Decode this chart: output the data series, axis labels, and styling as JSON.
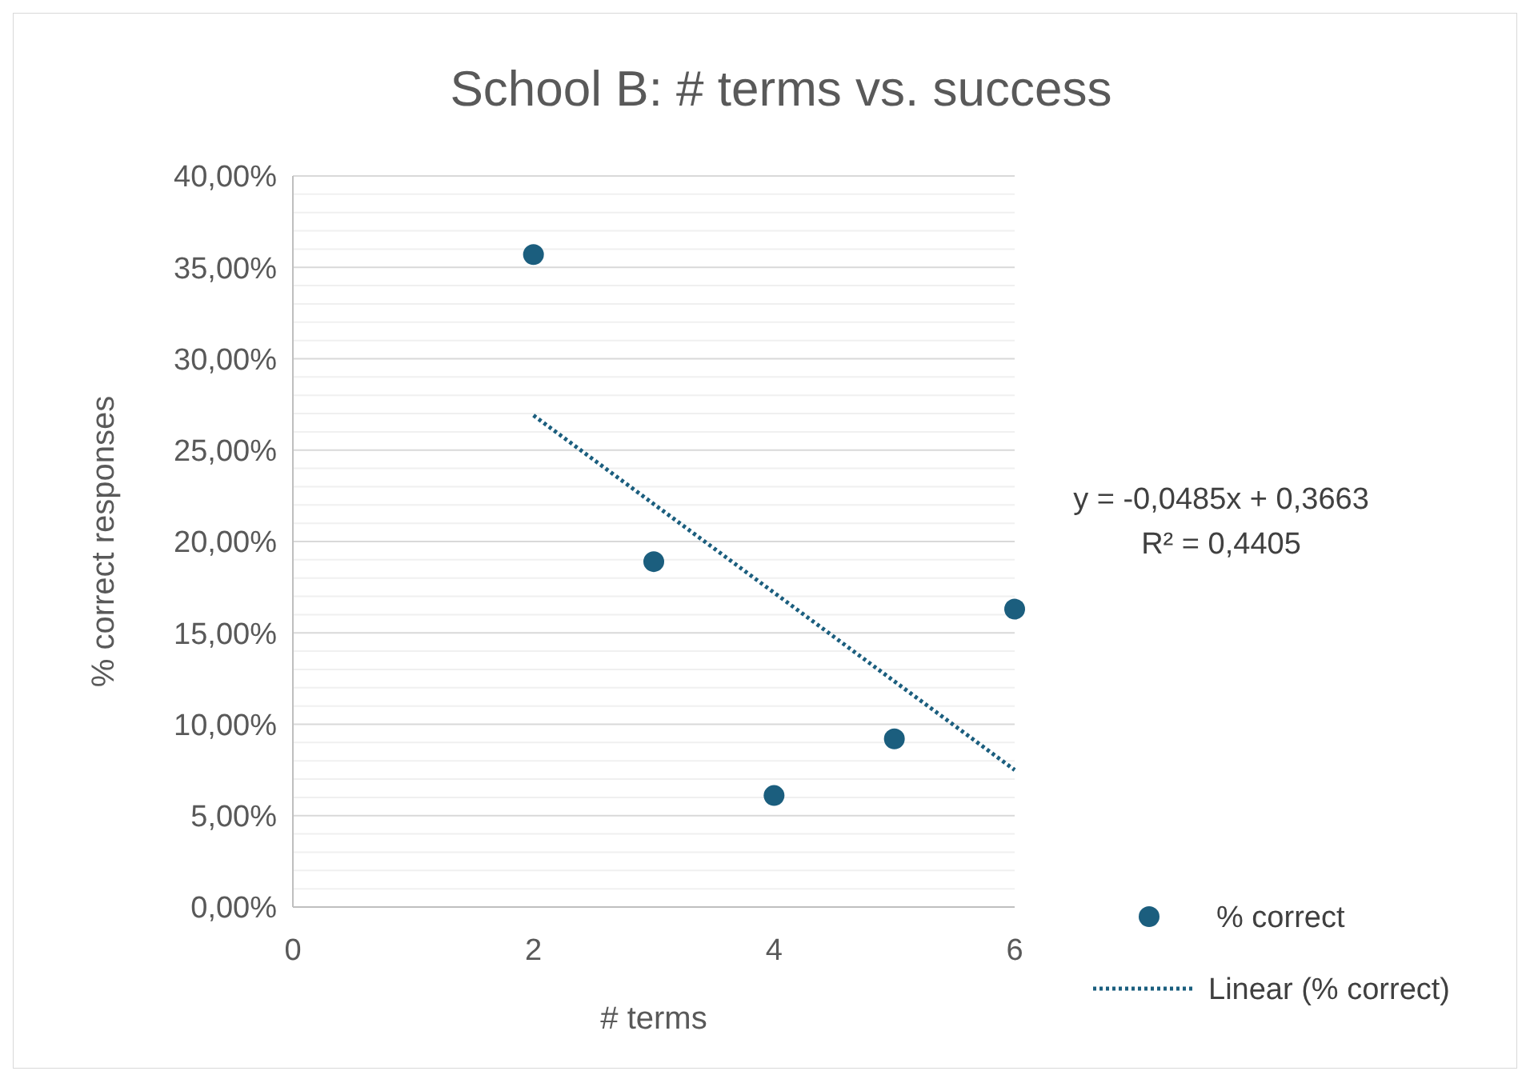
{
  "chart_data": {
    "type": "scatter",
    "title": "School B: # terms vs. success",
    "xlabel": "# terms",
    "ylabel": "% correct responses",
    "xlim": [
      0,
      6
    ],
    "xticks": [
      0,
      2,
      4,
      6
    ],
    "ylim": [
      0,
      0.4
    ],
    "yticks": [
      {
        "value": 0,
        "label": "0,00%"
      },
      {
        "value": 0.01,
        "label": null
      },
      {
        "value": 0.02,
        "label": null
      },
      {
        "value": 0.03,
        "label": null
      },
      {
        "value": 0.04,
        "label": null
      },
      {
        "value": 0.05,
        "label": "5,00%"
      },
      {
        "value": 0.06,
        "label": null
      },
      {
        "value": 0.07,
        "label": null
      },
      {
        "value": 0.08,
        "label": null
      },
      {
        "value": 0.09,
        "label": null
      },
      {
        "value": 0.1,
        "label": "10,00%"
      },
      {
        "value": 0.11,
        "label": null
      },
      {
        "value": 0.12,
        "label": null
      },
      {
        "value": 0.13,
        "label": null
      },
      {
        "value": 0.14,
        "label": null
      },
      {
        "value": 0.15,
        "label": "15,00%"
      },
      {
        "value": 0.16,
        "label": null
      },
      {
        "value": 0.17,
        "label": null
      },
      {
        "value": 0.18,
        "label": null
      },
      {
        "value": 0.19,
        "label": null
      },
      {
        "value": 0.2,
        "label": "20,00%"
      },
      {
        "value": 0.21,
        "label": null
      },
      {
        "value": 0.22,
        "label": null
      },
      {
        "value": 0.23,
        "label": null
      },
      {
        "value": 0.24,
        "label": null
      },
      {
        "value": 0.25,
        "label": "25,00%"
      },
      {
        "value": 0.26,
        "label": null
      },
      {
        "value": 0.27,
        "label": null
      },
      {
        "value": 0.28,
        "label": null
      },
      {
        "value": 0.29,
        "label": null
      },
      {
        "value": 0.3,
        "label": "30,00%"
      },
      {
        "value": 0.31,
        "label": null
      },
      {
        "value": 0.32,
        "label": null
      },
      {
        "value": 0.33,
        "label": null
      },
      {
        "value": 0.34,
        "label": null
      },
      {
        "value": 0.35,
        "label": "35,00%"
      },
      {
        "value": 0.36,
        "label": null
      },
      {
        "value": 0.37,
        "label": null
      },
      {
        "value": 0.38,
        "label": null
      },
      {
        "value": 0.39,
        "label": null
      },
      {
        "value": 0.4,
        "label": "40,00%"
      }
    ],
    "grid": "y",
    "legend": "right",
    "marker": "circle",
    "series": [
      {
        "name": "% correct",
        "color": "#1b5e7e",
        "x": [
          2,
          3,
          4,
          5,
          6
        ],
        "values": [
          0.357,
          0.189,
          0.061,
          0.092,
          0.163
        ]
      },
      {
        "name": "Linear (% correct)",
        "type": "line",
        "color": "#1b5e7e",
        "line_style": "dotted",
        "marker": "none",
        "x": [
          2,
          6
        ],
        "values": [
          0.269,
          0.075
        ]
      }
    ],
    "annotations": [
      "y = -0,0485x + 0,3663",
      "R² = 0,4405"
    ]
  }
}
